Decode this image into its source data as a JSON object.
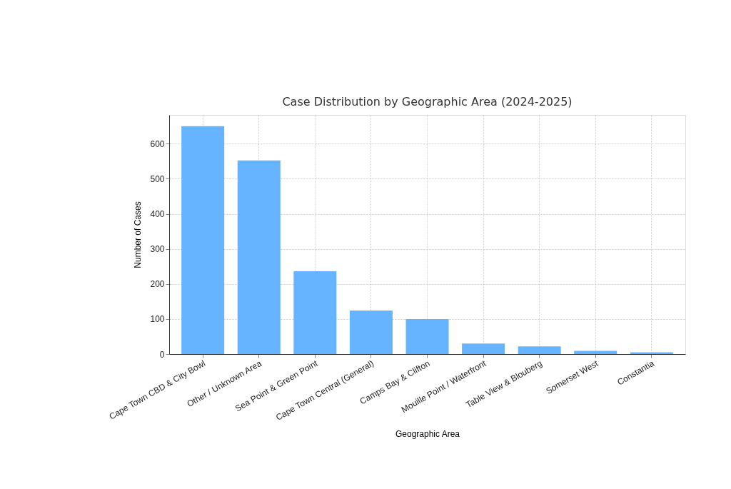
{
  "chart_data": {
    "type": "bar",
    "title": "Case Distribution by Geographic Area (2024-2025)",
    "xlabel": "Geographic Area",
    "ylabel": "Number of Cases",
    "categories": [
      "Cape Town CBD & City Bowl",
      "Other / Unknown Area",
      "Sea Point & Green Point",
      "Cape Town Central (General)",
      "Camps Bay & Clifton",
      "Mouille Point / Waterfront",
      "Table View & Blouberg",
      "Somerset West",
      "Constantia"
    ],
    "values": [
      650,
      552,
      236,
      124,
      100,
      30,
      22,
      9,
      5
    ],
    "color": "#66b3ff",
    "ylim": [
      0,
      682
    ],
    "yticks": [
      0,
      100,
      200,
      300,
      400,
      500,
      600
    ],
    "grid": true
  }
}
